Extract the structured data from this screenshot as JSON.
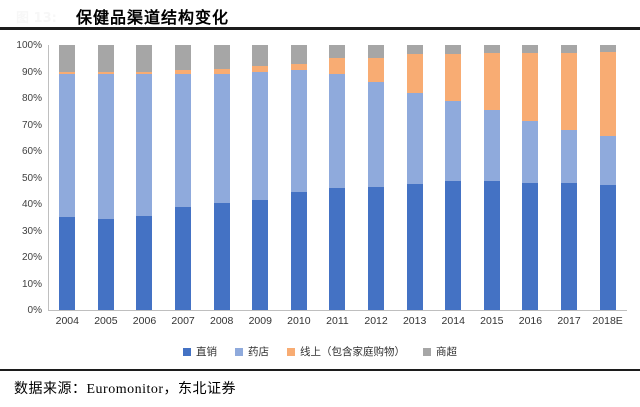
{
  "header": {
    "watermark": "图 13:",
    "title": "保健品渠道结构变化"
  },
  "footer": {
    "source_text": "数据来源：Euromonitor，东北证券"
  },
  "chart_data": {
    "type": "bar",
    "variant": "stacked-100",
    "title": "保健品渠道结构变化",
    "xlabel": "",
    "ylabel": "",
    "ylim": [
      0,
      100
    ],
    "y_ticks": [
      "0%",
      "10%",
      "20%",
      "30%",
      "40%",
      "50%",
      "60%",
      "70%",
      "80%",
      "90%",
      "100%"
    ],
    "grid": false,
    "legend_position": "bottom",
    "categories": [
      "2004",
      "2005",
      "2006",
      "2007",
      "2008",
      "2009",
      "2010",
      "2011",
      "2012",
      "2013",
      "2014",
      "2015",
      "2016",
      "2017",
      "2018E"
    ],
    "series": [
      {
        "name": "直销",
        "color": "#4472c4",
        "values": [
          35,
          34.5,
          35.5,
          39,
          40.5,
          41.5,
          44.5,
          46,
          46.5,
          47.5,
          48.5,
          48.5,
          48,
          48,
          47
        ]
      },
      {
        "name": "药店",
        "color": "#8faadc",
        "values": [
          54,
          54.5,
          53.5,
          50,
          48.5,
          48.5,
          46,
          43,
          39.5,
          34.5,
          30.5,
          27,
          23.5,
          20,
          18.5
        ]
      },
      {
        "name": "线上（包含家庭购物）",
        "color": "#f8ac73",
        "values": [
          1,
          1,
          1,
          1.5,
          2,
          2,
          2.5,
          6,
          9,
          14.5,
          17.5,
          21.5,
          25.5,
          29,
          32
        ]
      },
      {
        "name": "商超",
        "color": "#a6a6a6",
        "values": [
          10,
          10,
          10,
          9.5,
          9,
          8,
          7,
          5,
          5,
          3.5,
          3.5,
          3,
          3,
          3,
          2.5
        ]
      }
    ],
    "axis_color": "#bfbfbf",
    "tick_text_color": "#404040"
  }
}
